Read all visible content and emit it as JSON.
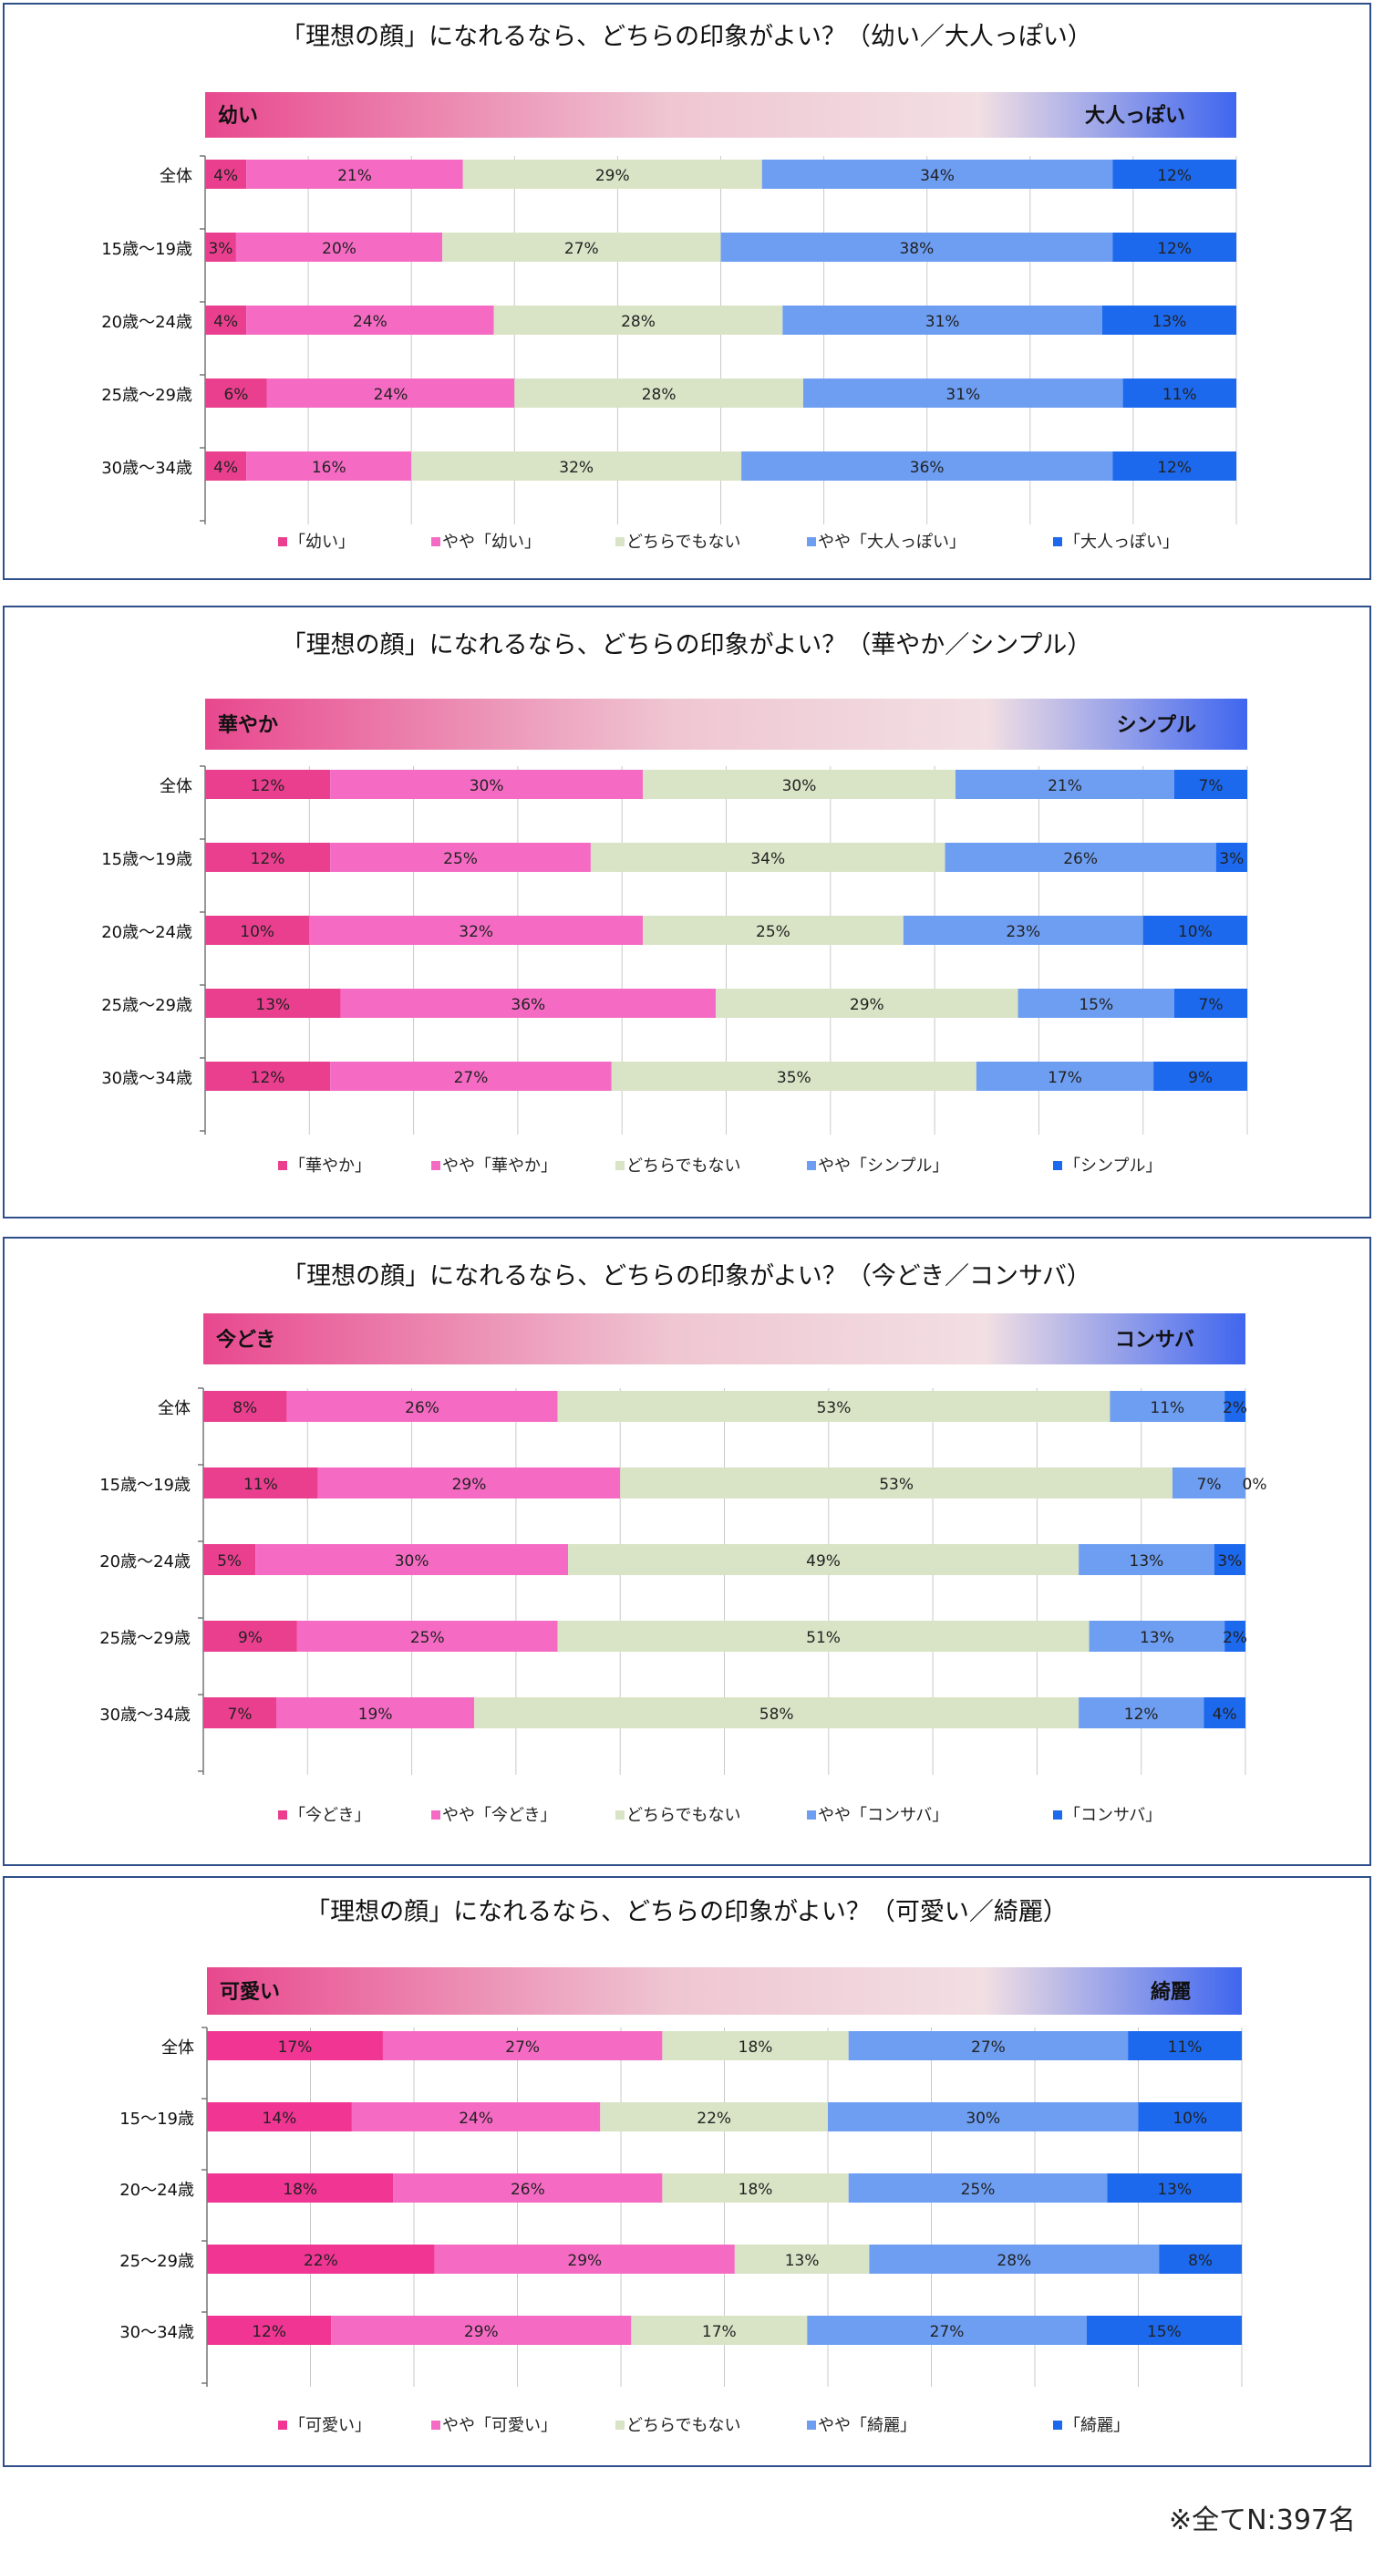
{
  "colors": {
    "c1": "#ea3f8f",
    "c2": "#f56bc4",
    "c3": "#d9e4c6",
    "c4": "#6e9ef2",
    "c5": "#1c69ee",
    "band_left": "#e8488e",
    "band_mid": "#f2dfe3",
    "band_right": "#3f66ef",
    "c1_alt": "#f03593"
  },
  "footnote": "※全てN:397名",
  "chart_data": [
    {
      "type": "bar",
      "stacked": "percent",
      "orientation": "horizontal",
      "title": "「理想の顔」になれるなら、どちらの印象がよい？（幼い／大人っぽい）",
      "band_left": "幼い",
      "band_right": "大人っぽい",
      "categories": [
        "全体",
        "15歳～19歳",
        "20歳～24歳",
        "25歳～29歳",
        "30歳～34歳"
      ],
      "series": [
        {
          "name": "「幼い」",
          "values": [
            4,
            3,
            4,
            6,
            4
          ]
        },
        {
          "name": "やや「幼い」",
          "values": [
            21,
            20,
            24,
            24,
            16
          ]
        },
        {
          "name": "どちらでもない",
          "values": [
            29,
            27,
            28,
            28,
            32
          ]
        },
        {
          "name": "やや「大人っぽい」",
          "values": [
            34,
            38,
            31,
            31,
            36
          ]
        },
        {
          "name": "「大人っぽい」",
          "values": [
            12,
            12,
            13,
            11,
            12
          ]
        }
      ],
      "legend": "bottom",
      "unit": "%"
    },
    {
      "type": "bar",
      "stacked": "percent",
      "orientation": "horizontal",
      "title": "「理想の顔」になれるなら、どちらの印象がよい？（華やか／シンプル）",
      "band_left": "華やか",
      "band_right": "シンプル",
      "categories": [
        "全体",
        "15歳～19歳",
        "20歳～24歳",
        "25歳～29歳",
        "30歳～34歳"
      ],
      "series": [
        {
          "name": "「華やか」",
          "values": [
            12,
            12,
            10,
            13,
            12
          ]
        },
        {
          "name": "やや「華やか」",
          "values": [
            30,
            25,
            32,
            36,
            27
          ]
        },
        {
          "name": "どちらでもない",
          "values": [
            30,
            34,
            25,
            29,
            35
          ]
        },
        {
          "name": "やや「シンプル」",
          "values": [
            21,
            26,
            23,
            15,
            17
          ]
        },
        {
          "name": "「シンプル」",
          "values": [
            7,
            3,
            10,
            7,
            9
          ]
        }
      ],
      "legend": "bottom",
      "unit": "%"
    },
    {
      "type": "bar",
      "stacked": "percent",
      "orientation": "horizontal",
      "title": "「理想の顔」になれるなら、どちらの印象がよい？（今どき／コンサバ）",
      "band_left": "今どき",
      "band_right": "コンサバ",
      "categories": [
        "全体",
        "15歳～19歳",
        "20歳～24歳",
        "25歳～29歳",
        "30歳～34歳"
      ],
      "series": [
        {
          "name": "「今どき」",
          "values": [
            8,
            11,
            5,
            9,
            7
          ]
        },
        {
          "name": "やや「今どき」",
          "values": [
            26,
            29,
            30,
            25,
            19
          ]
        },
        {
          "name": "どちらでもない",
          "values": [
            53,
            53,
            49,
            51,
            58
          ]
        },
        {
          "name": "やや「コンサバ」",
          "values": [
            11,
            7,
            13,
            13,
            12
          ]
        },
        {
          "name": "「コンサバ」",
          "values": [
            2,
            0,
            3,
            2,
            4
          ]
        }
      ],
      "legend": "bottom",
      "unit": "%"
    },
    {
      "type": "bar",
      "stacked": "percent",
      "orientation": "horizontal",
      "title": "「理想の顔」になれるなら、どちらの印象がよい？（可愛い／綺麗）",
      "band_left": "可愛い",
      "band_right": "綺麗",
      "categories": [
        "全体",
        "15～19歳",
        "20～24歳",
        "25～29歳",
        "30～34歳"
      ],
      "series": [
        {
          "name": "「可愛い」",
          "values": [
            17,
            14,
            18,
            22,
            12
          ]
        },
        {
          "name": "やや「可愛い」",
          "values": [
            27,
            24,
            26,
            29,
            29
          ]
        },
        {
          "name": "どちらでもない",
          "values": [
            18,
            22,
            18,
            13,
            17
          ]
        },
        {
          "name": "やや「綺麗」",
          "values": [
            27,
            30,
            25,
            28,
            27
          ]
        },
        {
          "name": "「綺麗」",
          "values": [
            11,
            10,
            13,
            8,
            15
          ]
        }
      ],
      "legend": "bottom",
      "unit": "%"
    }
  ]
}
